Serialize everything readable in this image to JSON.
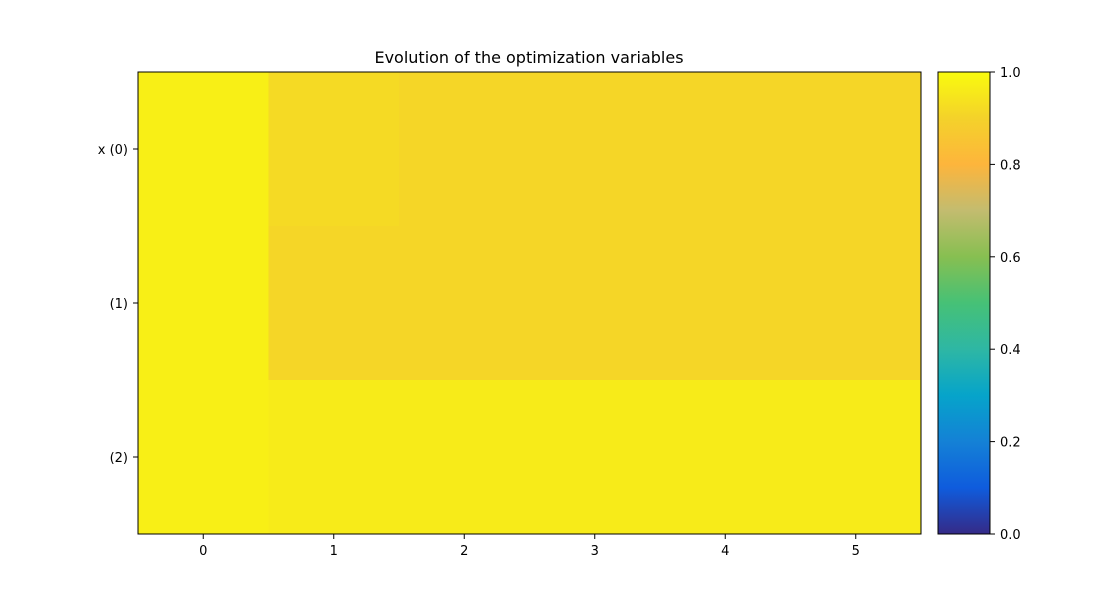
{
  "chart_data": {
    "type": "heatmap",
    "title": "Evolution of the optimization variables",
    "x_categories": [
      "0",
      "1",
      "2",
      "3",
      "4",
      "5"
    ],
    "y_categories": [
      "x (0)",
      "(1)",
      "(2)"
    ],
    "values": [
      [
        0.97,
        0.92,
        0.91,
        0.91,
        0.91,
        0.91
      ],
      [
        0.97,
        0.91,
        0.91,
        0.91,
        0.91,
        0.91
      ],
      [
        0.97,
        0.96,
        0.96,
        0.96,
        0.96,
        0.96
      ]
    ],
    "colorbar": {
      "range": [
        0.0,
        1.0
      ],
      "ticks": [
        "0.0",
        "0.2",
        "0.4",
        "0.6",
        "0.8",
        "1.0"
      ],
      "colormap": "parula"
    },
    "grid": false
  }
}
